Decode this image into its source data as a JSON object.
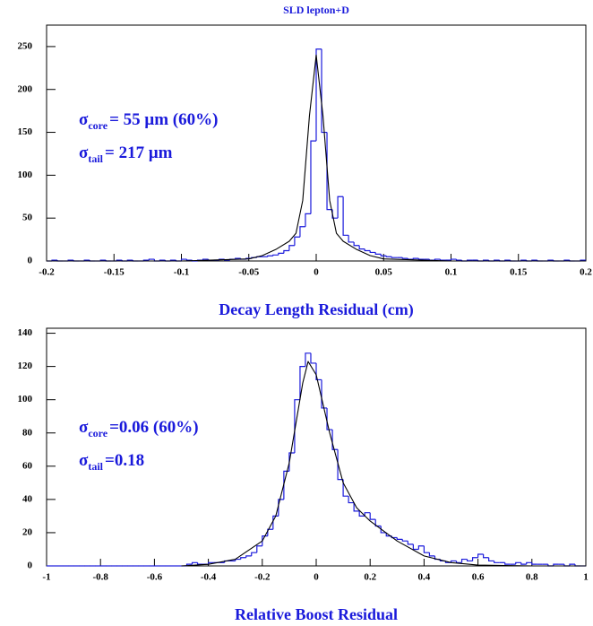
{
  "chart_data": [
    {
      "type": "histogram",
      "title": "SLD lepton+D",
      "xlabel": "Decay Length Residual (cm)",
      "bins": [
        -0.2,
        -0.196,
        -0.192,
        -0.188,
        -0.184,
        -0.18,
        -0.176,
        -0.172,
        -0.168,
        -0.164,
        -0.16,
        -0.156,
        -0.152,
        -0.148,
        -0.144,
        -0.14,
        -0.136,
        -0.132,
        -0.128,
        -0.124,
        -0.12,
        -0.116,
        -0.112,
        -0.108,
        -0.104,
        -0.1,
        -0.096,
        -0.092,
        -0.088,
        -0.084,
        -0.08,
        -0.076,
        -0.072,
        -0.068,
        -0.064,
        -0.06,
        -0.056,
        -0.052,
        -0.048,
        -0.044,
        -0.04,
        -0.036,
        -0.032,
        -0.028,
        -0.024,
        -0.02,
        -0.016,
        -0.012,
        -0.008,
        -0.004,
        0,
        0.004,
        0.008,
        0.012,
        0.016,
        0.02,
        0.024,
        0.028,
        0.032,
        0.036,
        0.04,
        0.044,
        0.048,
        0.052,
        0.056,
        0.06,
        0.064,
        0.068,
        0.072,
        0.076,
        0.08,
        0.084,
        0.088,
        0.092,
        0.096,
        0.1,
        0.104,
        0.108,
        0.112,
        0.116,
        0.12,
        0.124,
        0.128,
        0.132,
        0.136,
        0.14,
        0.144,
        0.148,
        0.152,
        0.156,
        0.16,
        0.164,
        0.168,
        0.172,
        0.176,
        0.18,
        0.184,
        0.188,
        0.192,
        0.196,
        0.2
      ],
      "values": [
        0,
        1,
        0,
        0,
        1,
        0,
        0,
        1,
        0,
        0,
        1,
        0,
        0,
        1,
        0,
        1,
        0,
        0,
        1,
        2,
        0,
        1,
        0,
        1,
        0,
        2,
        1,
        0,
        1,
        2,
        1,
        1,
        2,
        1,
        2,
        3,
        2,
        3,
        4,
        5,
        5,
        6,
        7,
        9,
        12,
        18,
        28,
        40,
        55,
        140,
        247,
        150,
        60,
        50,
        75,
        30,
        22,
        18,
        14,
        12,
        10,
        8,
        6,
        5,
        4,
        4,
        3,
        2,
        3,
        2,
        2,
        1,
        2,
        1,
        1,
        2,
        1,
        0,
        1,
        1,
        0,
        1,
        0,
        1,
        0,
        1,
        0,
        0,
        1,
        0,
        1,
        0,
        0,
        1,
        0,
        0,
        1,
        0,
        0,
        1
      ],
      "color": "#1a1adb",
      "fit": {
        "x": [
          -0.2,
          -0.1,
          -0.05,
          -0.04,
          -0.03,
          -0.02,
          -0.015,
          -0.01,
          -0.005,
          0,
          0.005,
          0.01,
          0.015,
          0.02,
          0.03,
          0.04,
          0.05,
          0.1,
          0.2
        ],
        "values": [
          0,
          0,
          2.4,
          6.3,
          13.4,
          23,
          32.3,
          70.5,
          169.6,
          240,
          169.6,
          70.5,
          32.3,
          23,
          13.4,
          6.3,
          2.4,
          0,
          0
        ],
        "color": "#000000"
      },
      "annotations": [
        {
          "symbol": "σ",
          "subscript": "core",
          "text": "= 55 μm (60%)"
        },
        {
          "symbol": "σ",
          "subscript": "tail",
          "text": "= 217 μm"
        }
      ],
      "xlim": [
        -0.2,
        0.2
      ],
      "xticks": [
        -0.2,
        -0.15,
        -0.1,
        -0.05,
        0,
        0.05,
        0.1,
        0.15,
        0.2
      ],
      "ylim": [
        0,
        275
      ],
      "yticks": [
        0,
        50,
        100,
        150,
        200,
        250
      ]
    },
    {
      "type": "histogram",
      "xlabel": "Relative Boost Residual",
      "bins": [
        -1,
        -0.98,
        -0.96,
        -0.94,
        -0.92,
        -0.9,
        -0.88,
        -0.86,
        -0.84,
        -0.82,
        -0.8,
        -0.78,
        -0.76,
        -0.74,
        -0.72,
        -0.7,
        -0.68,
        -0.66,
        -0.64,
        -0.62,
        -0.6,
        -0.58,
        -0.56,
        -0.54,
        -0.52,
        -0.5,
        -0.48,
        -0.46,
        -0.44,
        -0.42,
        -0.4,
        -0.38,
        -0.36,
        -0.34,
        -0.32,
        -0.3,
        -0.28,
        -0.26,
        -0.24,
        -0.22,
        -0.2,
        -0.18,
        -0.16,
        -0.14,
        -0.12,
        -0.1,
        -0.08,
        -0.06,
        -0.04,
        -0.02,
        0,
        0.02,
        0.04,
        0.06,
        0.08,
        0.1,
        0.12,
        0.14,
        0.16,
        0.18,
        0.2,
        0.22,
        0.24,
        0.26,
        0.28,
        0.3,
        0.32,
        0.34,
        0.36,
        0.38,
        0.4,
        0.42,
        0.44,
        0.46,
        0.48,
        0.5,
        0.52,
        0.54,
        0.56,
        0.58,
        0.6,
        0.62,
        0.64,
        0.66,
        0.68,
        0.7,
        0.72,
        0.74,
        0.76,
        0.78,
        0.8,
        0.82,
        0.84,
        0.86,
        0.88,
        0.9,
        0.92,
        0.94,
        0.96,
        0.98,
        1
      ],
      "values": [
        0,
        0,
        0,
        0,
        0,
        0,
        0,
        0,
        0,
        0,
        0,
        0,
        0,
        0,
        0,
        0,
        0,
        0,
        0,
        0,
        0,
        0,
        0,
        0,
        0,
        0,
        1,
        2,
        1,
        1,
        2,
        2,
        2,
        3,
        3,
        4,
        5,
        6,
        8,
        12,
        18,
        22,
        30,
        40,
        57,
        68,
        100,
        120,
        128,
        122,
        112,
        95,
        82,
        70,
        52,
        42,
        38,
        33,
        30,
        32,
        28,
        24,
        20,
        18,
        17,
        16,
        15,
        13,
        10,
        12,
        8,
        6,
        4,
        3,
        2,
        3,
        2,
        4,
        3,
        5,
        7,
        5,
        3,
        2,
        2,
        1,
        1,
        2,
        1,
        2,
        1,
        1,
        1,
        0,
        1,
        1,
        0,
        1,
        0,
        0
      ],
      "color": "#1a1adb",
      "fit": {
        "x": [
          -0.5,
          -0.4,
          -0.3,
          -0.2,
          -0.15,
          -0.1,
          -0.05,
          -0.03,
          0,
          0.05,
          0.1,
          0.15,
          0.2,
          0.3,
          0.4,
          0.5,
          0.6,
          0.8,
          1
        ],
        "values": [
          0,
          1,
          4,
          15,
          30,
          62,
          110,
          123,
          115,
          80,
          50,
          35,
          27,
          15,
          6,
          2,
          0.5,
          0,
          0
        ],
        "color": "#000000"
      },
      "annotations": [
        {
          "symbol": "σ",
          "subscript": "core",
          "text": "=0.06 (60%)"
        },
        {
          "symbol": "σ",
          "subscript": "tail",
          "text": "=0.18"
        }
      ],
      "xlim": [
        -1,
        1
      ],
      "xticks": [
        -1,
        -0.8,
        -0.6,
        -0.4,
        -0.2,
        0,
        0.2,
        0.4,
        0.6,
        0.8,
        1
      ],
      "ylim": [
        0,
        143
      ],
      "yticks": [
        0,
        20,
        40,
        60,
        80,
        100,
        120,
        140
      ]
    }
  ]
}
